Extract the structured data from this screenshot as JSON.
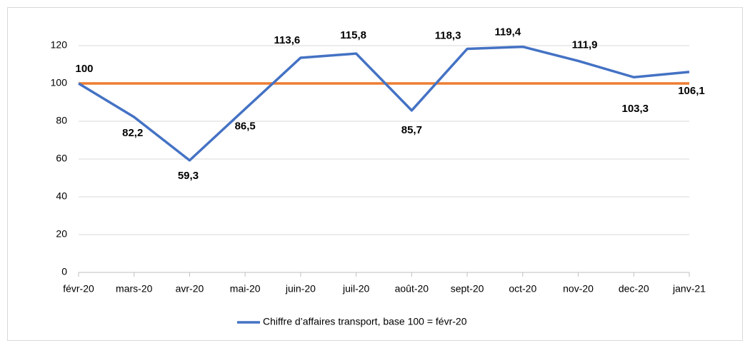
{
  "chart_data": {
    "type": "line",
    "categories": [
      "févr-20",
      "mars-20",
      "avr-20",
      "mai-20",
      "juin-20",
      "juil-20",
      "août-20",
      "sept-20",
      "oct-20",
      "nov-20",
      "dec-20",
      "janv-21"
    ],
    "series": [
      {
        "name": "Chiffre d’affaires transport, base 100 = févr-20",
        "color": "#4472c4",
        "values": [
          100,
          82.2,
          59.3,
          86.5,
          113.6,
          115.8,
          85.7,
          118.3,
          119.4,
          111.9,
          103.3,
          106.1
        ],
        "value_labels": [
          "100",
          "82,2",
          "59,3",
          "86,5",
          "113,6",
          "115,8",
          "85,7",
          "118,3",
          "119,4",
          "111,9",
          "103,3",
          "106,1"
        ]
      }
    ],
    "reference_line": {
      "value": 100,
      "color": "#ed7d31"
    },
    "ylim": [
      0,
      120
    ],
    "yticks": [
      0,
      20,
      40,
      60,
      80,
      100,
      120
    ],
    "grid": true,
    "legend": "bottom"
  }
}
